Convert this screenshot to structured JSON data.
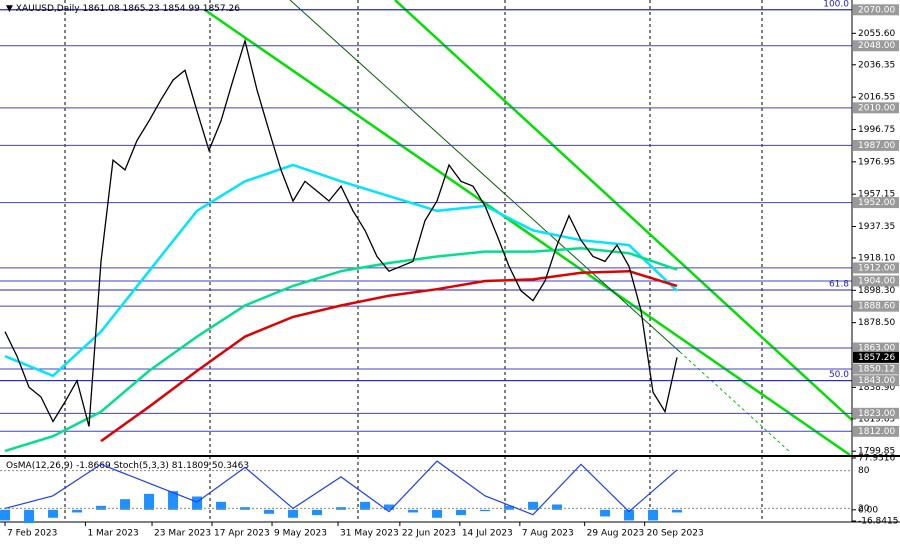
{
  "chart_data": {
    "type": "line",
    "title": "XAUUSD,Daily",
    "ohlc": [
      1861.08,
      1865.23,
      1854.99,
      1857.26
    ],
    "x": [
      0,
      1,
      2,
      3,
      4,
      5,
      6,
      7,
      8,
      9,
      10,
      11,
      12,
      13,
      14,
      15,
      16,
      17,
      18,
      19,
      20,
      21,
      22,
      23,
      24,
      25,
      26,
      27,
      28,
      29,
      30,
      31,
      32,
      33,
      34,
      35,
      36,
      37,
      38,
      39,
      40,
      41,
      42,
      43,
      44,
      45,
      46,
      47,
      48,
      49,
      50,
      51,
      52,
      53,
      54,
      55,
      56
    ],
    "values": [
      1873,
      1858,
      1839,
      1833,
      1818,
      1830,
      1843,
      1815,
      1916,
      1978,
      1972,
      1990,
      2002,
      2015,
      2027,
      2033,
      2008,
      1984,
      2002,
      2027,
      2051,
      2021,
      1996,
      1972,
      1953,
      1965,
      1959,
      1953,
      1962,
      1947,
      1935,
      1919,
      1910,
      1913,
      1916,
      1941,
      1953,
      1975,
      1965,
      1962,
      1950,
      1932,
      1913,
      1898,
      1892,
      1904,
      1926,
      1944,
      1929,
      1919,
      1916,
      1926,
      1913,
      1886,
      1836,
      1824,
      1857.26
    ],
    "color": "#000000",
    "xlim": [
      -0.42,
      70.58
    ],
    "xticks": [
      {
        "value": 0,
        "label": "7 Feb 2023"
      },
      {
        "value": 6.7,
        "label": "1 Mar 2023"
      },
      {
        "value": 12.25,
        "label": "23 Mar 2023"
      },
      {
        "value": 17.25,
        "label": "17 Apr 2023"
      },
      {
        "value": 22.25,
        "label": "9 May 2023"
      },
      {
        "value": 27.75,
        "label": "31 May 2023"
      },
      {
        "value": 32.9,
        "label": "22 Jun 2023"
      },
      {
        "value": 37.9,
        "label": "14 Jul 2023"
      },
      {
        "value": 42.9,
        "label": "7 Aug 2023"
      },
      {
        "value": 48.3,
        "label": "29 Aug 2023"
      },
      {
        "value": 53.3,
        "label": "20 Sep 2023"
      }
    ],
    "ylim": [
      1797.5,
      2076
    ],
    "yticks": [
      {
        "value": 2055.6,
        "label": "2055.60"
      },
      2036.35,
      2016.55,
      1996.75,
      1976.95,
      1957.15,
      1937.35,
      {
        "value": 1918.1,
        "label": "1918.10"
      },
      {
        "value": 1898.3,
        "label": "1898.30"
      },
      {
        "value": 1878.5,
        "label": "1878.50"
      },
      {
        "value": 1838.9,
        "label": "1838.90"
      },
      1819.65,
      1799.85
    ],
    "moving_averages": [
      {
        "color": "#00e5ff",
        "x": [
          0,
          4,
          8,
          12,
          16,
          20,
          24,
          28,
          32,
          36,
          40,
          44,
          48,
          52,
          56
        ],
        "values": [
          1858,
          1846,
          1873,
          1910,
          1947,
          1965,
          1975,
          1965,
          1956,
          1947,
          1950,
          1935,
          1929,
          1926,
          1898
        ]
      },
      {
        "color": "#00e08a",
        "x": [
          0,
          4,
          8,
          12,
          16,
          20,
          24,
          28,
          32,
          36,
          40,
          44,
          48,
          52,
          56
        ],
        "values": [
          1800,
          1809,
          1824,
          1849,
          1870,
          1889,
          1901,
          1910,
          1915,
          1919,
          1922,
          1922,
          1924,
          1921,
          1911
        ]
      },
      {
        "color": "#e00000",
        "x": [
          8,
          12,
          16,
          20,
          24,
          28,
          32,
          36,
          40,
          44,
          48,
          52,
          56
        ],
        "values": [
          1806,
          1827,
          1849,
          1870,
          1882,
          1889,
          1895,
          1899,
          1904,
          1905,
          1909,
          1910,
          1901
        ]
      }
    ],
    "levels": [
      {
        "value": 2070,
        "label": "2070.00"
      },
      {
        "value": 2048,
        "label": "2048.00"
      },
      {
        "value": 2010,
        "label": "2010.00"
      },
      {
        "value": 1987,
        "label": "1987.00"
      },
      {
        "value": 1952,
        "label": "1952.00"
      },
      {
        "value": 1912,
        "label": "1912.00"
      },
      {
        "value": 1904,
        "label": "1904.00"
      },
      {
        "value": 1888.6,
        "label": "1888.60"
      },
      {
        "value": 1863,
        "label": "1863.00"
      },
      {
        "value": 1850.12,
        "label": "1850.12"
      },
      {
        "value": 1843,
        "label": "1843.00"
      },
      {
        "value": 1823,
        "label": "1823.00"
      },
      {
        "value": 1812,
        "label": "1812.00"
      }
    ],
    "level_color": "#4040d0",
    "last": 1857.26,
    "fib": [
      {
        "value": 2070,
        "label": "100.0"
      },
      {
        "value": 1898.5,
        "label": "61.8"
      },
      {
        "value": 1843,
        "label": "50.0"
      }
    ],
    "oscillator": {
      "osma_name": "OsMA(12,26,9)",
      "osma_value": -1.8669,
      "stoch_name": "Stoch(5,3,3)",
      "stoch_main": 81.1809,
      "stoch_signal": 50.3463,
      "x": [
        0,
        2,
        4,
        6,
        8,
        10,
        12,
        14,
        16,
        18,
        20,
        22,
        24,
        26,
        28,
        30,
        32,
        34,
        36,
        38,
        40,
        42,
        44,
        46,
        48,
        50,
        52,
        54,
        56
      ],
      "osma": [
        -16,
        -20,
        -12,
        -4,
        6,
        16,
        24,
        28,
        20,
        12,
        4,
        -6,
        -12,
        -8,
        4,
        12,
        8,
        -4,
        -12,
        -8,
        -2,
        6,
        12,
        8,
        0,
        -10,
        -16,
        -16,
        -4
      ],
      "osma_color": "#1e90ff",
      "ylim": [
        -16.8415,
        77.9316
      ],
      "yticks": [
        77.9316,
        {
          "value": 0,
          "label": "0.00"
        },
        -16.8415
      ],
      "stoch_x": [
        0,
        4,
        8,
        12,
        16,
        20,
        24,
        28,
        32,
        36,
        40,
        44,
        48,
        52,
        56
      ],
      "stoch": [
        20,
        40,
        90,
        60,
        30,
        85,
        20,
        70,
        15,
        95,
        40,
        10,
        90,
        15,
        81.1809
      ],
      "stoch_color": "#1e3cff",
      "stoch_ylim": [
        0,
        100
      ],
      "stoch_yticks": [
        80,
        20
      ]
    }
  }
}
